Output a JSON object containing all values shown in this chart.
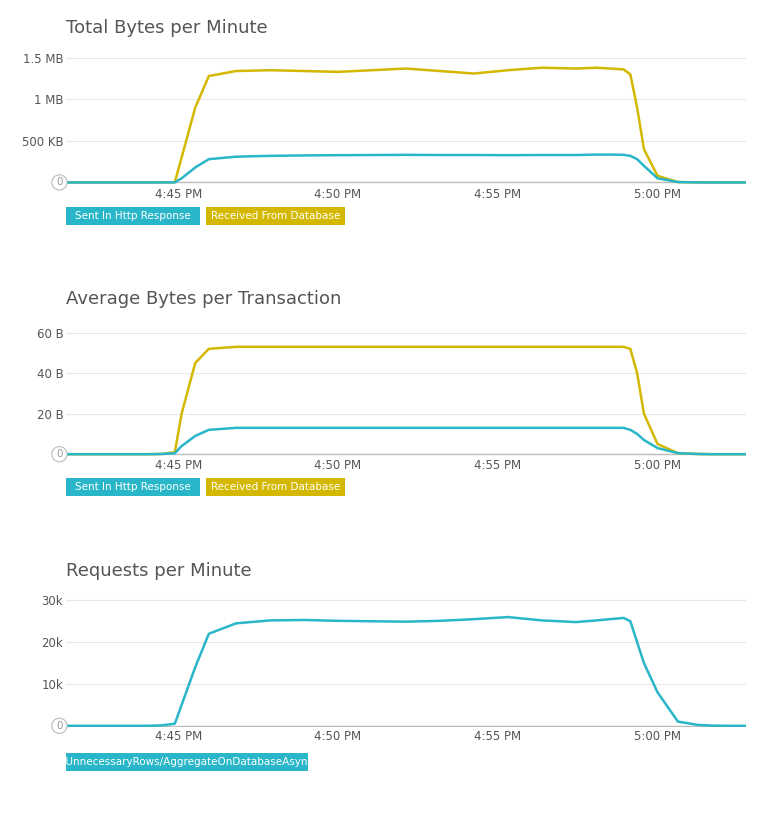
{
  "bg_color": "#ffffff",
  "text_color": "#555555",
  "title_fontsize": 13,
  "tick_fontsize": 8.5,
  "cyan_color": "#29b6c8",
  "gold_color": "#d4b800",
  "grid_color": "#e8e8e8",
  "chart1": {
    "title": "Total Bytes per Minute",
    "yticks": [
      0,
      500000,
      1000000,
      1500000
    ],
    "ytick_labels": [
      "",
      "500 KB",
      "1 MB",
      "1.5 MB"
    ],
    "ylim": [
      -30000,
      1700000
    ],
    "time_x": [
      0,
      2,
      4,
      6,
      8,
      10,
      12,
      14,
      16,
      17,
      19,
      21,
      25,
      30,
      35,
      40,
      45,
      50,
      55,
      60,
      65,
      70,
      75,
      78,
      80,
      82,
      83,
      84,
      85,
      87,
      90,
      93,
      95,
      97,
      100
    ],
    "cyan_y": [
      0,
      0,
      0,
      0,
      0,
      0,
      0,
      200,
      1000,
      50000,
      180000,
      280000,
      310000,
      320000,
      325000,
      328000,
      330000,
      332000,
      330000,
      330000,
      328000,
      330000,
      330000,
      335000,
      335000,
      332000,
      320000,
      280000,
      200000,
      50000,
      5000,
      200,
      50,
      5,
      0
    ],
    "gold_y": [
      0,
      0,
      0,
      0,
      0,
      0,
      0,
      500,
      3000,
      300000,
      900000,
      1280000,
      1340000,
      1350000,
      1340000,
      1330000,
      1350000,
      1370000,
      1340000,
      1310000,
      1350000,
      1380000,
      1370000,
      1380000,
      1370000,
      1360000,
      1300000,
      900000,
      400000,
      80000,
      5000,
      500,
      50,
      5,
      0
    ]
  },
  "chart2": {
    "title": "Average Bytes per Transaction",
    "yticks": [
      0,
      20,
      40,
      60
    ],
    "ytick_labels": [
      "",
      "20 B",
      "40 B",
      "60 B"
    ],
    "ylim": [
      -1,
      70
    ],
    "time_x": [
      0,
      2,
      4,
      6,
      8,
      10,
      12,
      14,
      16,
      17,
      19,
      21,
      25,
      30,
      35,
      40,
      45,
      50,
      55,
      60,
      65,
      70,
      75,
      78,
      80,
      82,
      83,
      84,
      85,
      87,
      90,
      93,
      95,
      97,
      100
    ],
    "cyan_y": [
      0,
      0,
      0,
      0,
      0,
      0,
      0,
      0.1,
      0.5,
      4,
      9,
      12,
      13,
      13,
      13,
      13,
      13,
      13,
      13,
      13,
      13,
      13,
      13,
      13,
      13,
      13,
      12,
      10,
      7,
      3,
      0.5,
      0.1,
      0,
      0,
      0
    ],
    "gold_y": [
      0,
      0,
      0,
      0,
      0,
      0,
      0,
      0.1,
      1,
      20,
      45,
      52,
      53,
      53,
      53,
      53,
      53,
      53,
      53,
      53,
      53,
      53,
      53,
      53,
      53,
      53,
      52,
      40,
      20,
      5,
      0.5,
      0.1,
      0,
      0,
      0
    ]
  },
  "chart3": {
    "title": "Requests per Minute",
    "yticks": [
      0,
      10000,
      20000,
      30000
    ],
    "ytick_labels": [
      "",
      "10k",
      "20k",
      "30k"
    ],
    "ylim": [
      -400,
      34000
    ],
    "time_x": [
      0,
      2,
      4,
      6,
      8,
      10,
      12,
      14,
      16,
      17,
      19,
      21,
      25,
      30,
      35,
      40,
      45,
      50,
      55,
      60,
      65,
      70,
      75,
      78,
      80,
      82,
      83,
      84,
      85,
      87,
      90,
      93,
      95,
      97,
      100
    ],
    "cyan_y": [
      0,
      0,
      0,
      0,
      0,
      0,
      0,
      100,
      500,
      5000,
      14000,
      22000,
      24500,
      25200,
      25300,
      25100,
      25000,
      24900,
      25100,
      25500,
      26000,
      25200,
      24800,
      25200,
      25500,
      25800,
      25000,
      20000,
      15000,
      8000,
      1000,
      200,
      50,
      5,
      0
    ]
  },
  "xtick_labels": [
    "4:45 PM",
    "4:50 PM",
    "4:55 PM",
    "5:00 PM"
  ],
  "xtick_positions": [
    16.5,
    40,
    63.5,
    87
  ],
  "legend12_labels": [
    "Sent In Http Response",
    "Received From Database"
  ],
  "legend12_colors": [
    "#29b6c8",
    "#d4b800"
  ],
  "legend3_label": "/UnnecessaryRows/AggregateOnDatabaseAsync",
  "legend3_color": "#29b6c8"
}
